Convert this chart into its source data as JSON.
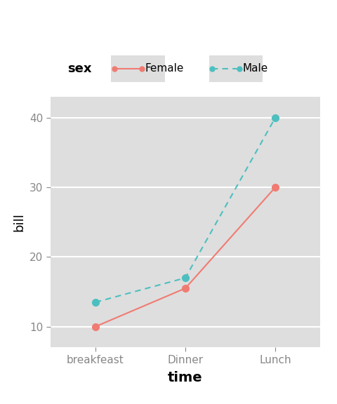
{
  "x_labels": [
    "breakfeast",
    "Dinner",
    "Lunch"
  ],
  "x_positions": [
    0,
    1,
    2
  ],
  "female_values": [
    10,
    15.5,
    30
  ],
  "male_values": [
    13.5,
    17,
    40
  ],
  "female_color": "#F07B72",
  "male_color": "#4DBFBF",
  "background_color": "#FFFFFF",
  "plot_bg_color": "#DEDEDE",
  "grid_color": "#FFFFFF",
  "ylabel": "bill",
  "xlabel": "time",
  "ylim": [
    7,
    43
  ],
  "yticks": [
    10,
    20,
    30,
    40
  ],
  "legend_title": "sex",
  "legend_female": "Female",
  "legend_male": "Male",
  "marker_size": 7,
  "line_width": 1.5
}
